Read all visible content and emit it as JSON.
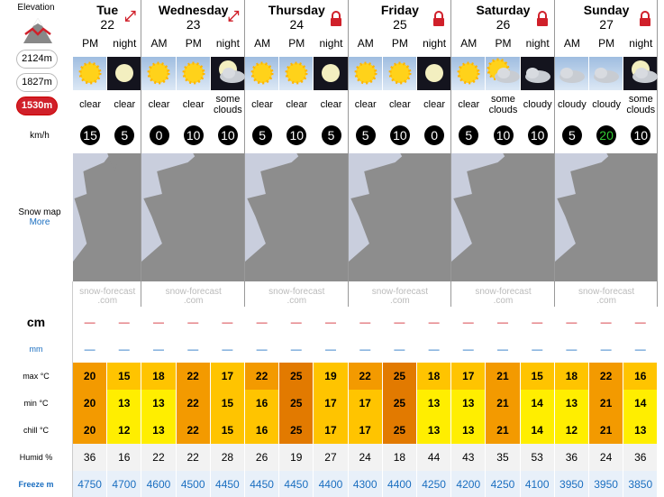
{
  "sidebar": {
    "elevation": "Elevation",
    "levels": [
      "2124m",
      "1827m",
      "1530m"
    ],
    "wind_unit": "km/h",
    "snow_map": "Snow map",
    "more": "More",
    "row_labels": {
      "snow": "cm",
      "rain": "mm",
      "max": "max °C",
      "min": "min °C",
      "chill": "chill °C",
      "humid": "Humid %",
      "freeze": "Freeze m"
    }
  },
  "days": [
    {
      "name": "Tue",
      "date": "22",
      "periods": [
        "PM",
        "night"
      ]
    },
    {
      "name": "Wednesday",
      "date": "23",
      "periods": [
        "AM",
        "PM",
        "night"
      ]
    },
    {
      "name": "Thursday",
      "date": "24",
      "periods": [
        "AM",
        "PM",
        "night"
      ]
    },
    {
      "name": "Friday",
      "date": "25",
      "periods": [
        "AM",
        "PM",
        "night"
      ]
    },
    {
      "name": "Saturday",
      "date": "26",
      "periods": [
        "AM",
        "PM",
        "night"
      ]
    },
    {
      "name": "Sunday",
      "date": "27",
      "periods": [
        "AM",
        "PM",
        "night"
      ]
    }
  ],
  "watermark": {
    "line1": "snow-forecast",
    "line2": ".com"
  },
  "rows": {
    "weather": [
      "clear",
      "clear",
      "clear",
      "clear",
      "some clouds",
      "clear",
      "clear",
      "clear",
      "clear",
      "clear",
      "clear",
      "clear",
      "some clouds",
      "cloudy",
      "cloudy",
      "cloudy",
      "some clouds"
    ],
    "wind": [
      15,
      5,
      0,
      10,
      10,
      5,
      10,
      5,
      5,
      10,
      0,
      5,
      10,
      10,
      5,
      20,
      10
    ],
    "snow": [
      "—",
      "—",
      "—",
      "—",
      "—",
      "—",
      "—",
      "—",
      "—",
      "—",
      "—",
      "—",
      "—",
      "—",
      "—",
      "—",
      "—"
    ],
    "rain": [
      "—",
      "—",
      "—",
      "—",
      "—",
      "—",
      "—",
      "—",
      "—",
      "—",
      "—",
      "—",
      "—",
      "—",
      "—",
      "—",
      "—"
    ],
    "max": [
      20,
      15,
      18,
      22,
      17,
      22,
      25,
      19,
      22,
      25,
      18,
      17,
      21,
      15,
      18,
      22,
      16
    ],
    "min": [
      20,
      13,
      13,
      22,
      15,
      16,
      25,
      17,
      17,
      25,
      13,
      13,
      21,
      14,
      13,
      21,
      14
    ],
    "chill": [
      20,
      12,
      13,
      22,
      15,
      16,
      25,
      17,
      17,
      25,
      13,
      13,
      21,
      14,
      12,
      21,
      13
    ],
    "humid": [
      36,
      16,
      22,
      22,
      28,
      26,
      19,
      27,
      24,
      18,
      44,
      43,
      35,
      53,
      36,
      24,
      36
    ],
    "freeze": [
      4750,
      4700,
      4600,
      4500,
      4450,
      4450,
      4450,
      4400,
      4300,
      4400,
      4250,
      4200,
      4250,
      4100,
      3950,
      3950,
      3850
    ]
  }
}
